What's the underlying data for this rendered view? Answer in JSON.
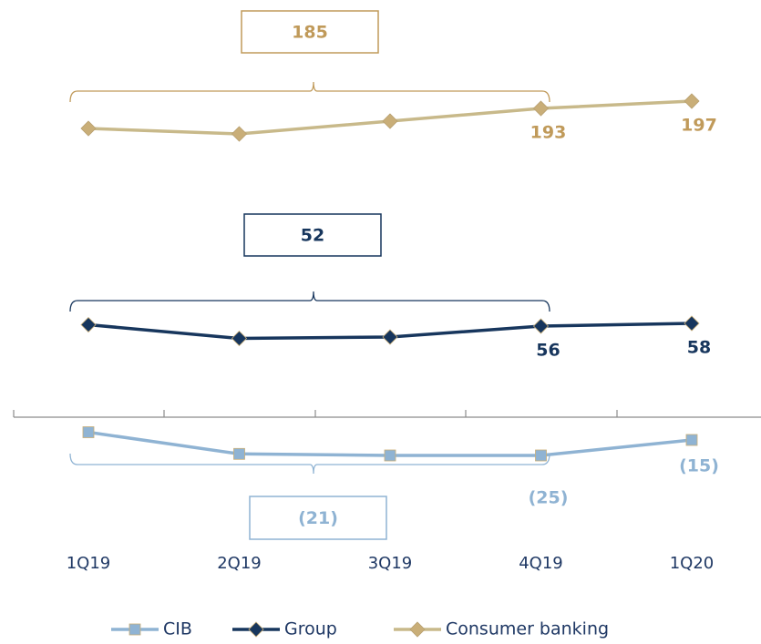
{
  "chart_data": {
    "type": "line",
    "categories": [
      "1Q19",
      "2Q19",
      "3Q19",
      "4Q19",
      "1Q20"
    ],
    "series": [
      {
        "name": "Consumer banking",
        "color": "#c8b98a",
        "marker": "diamond",
        "ylim": [
          170,
          220
        ],
        "values": [
          182,
          179,
          186,
          193,
          197
        ],
        "value_labels": [
          null,
          null,
          null,
          "193",
          "197"
        ],
        "label_color": "#c09a5a",
        "average_label": "185"
      },
      {
        "name": "Group",
        "color": "#17365d",
        "marker": "diamond",
        "ylim": [
          30,
          80
        ],
        "values": [
          57,
          47,
          48,
          56,
          58
        ],
        "value_labels": [
          null,
          null,
          null,
          "56",
          "58"
        ],
        "label_color": "#17365d",
        "average_label": "52"
      },
      {
        "name": "CIB",
        "color": "#8fb3d3",
        "marker": "square",
        "ylim": [
          -40,
          0
        ],
        "values": [
          -10,
          -24,
          -25,
          -25,
          -15
        ],
        "value_labels": [
          null,
          null,
          null,
          "(25)",
          "(15)"
        ],
        "label_color": "#8fb3d3",
        "average_label": "(21)"
      }
    ]
  }
}
